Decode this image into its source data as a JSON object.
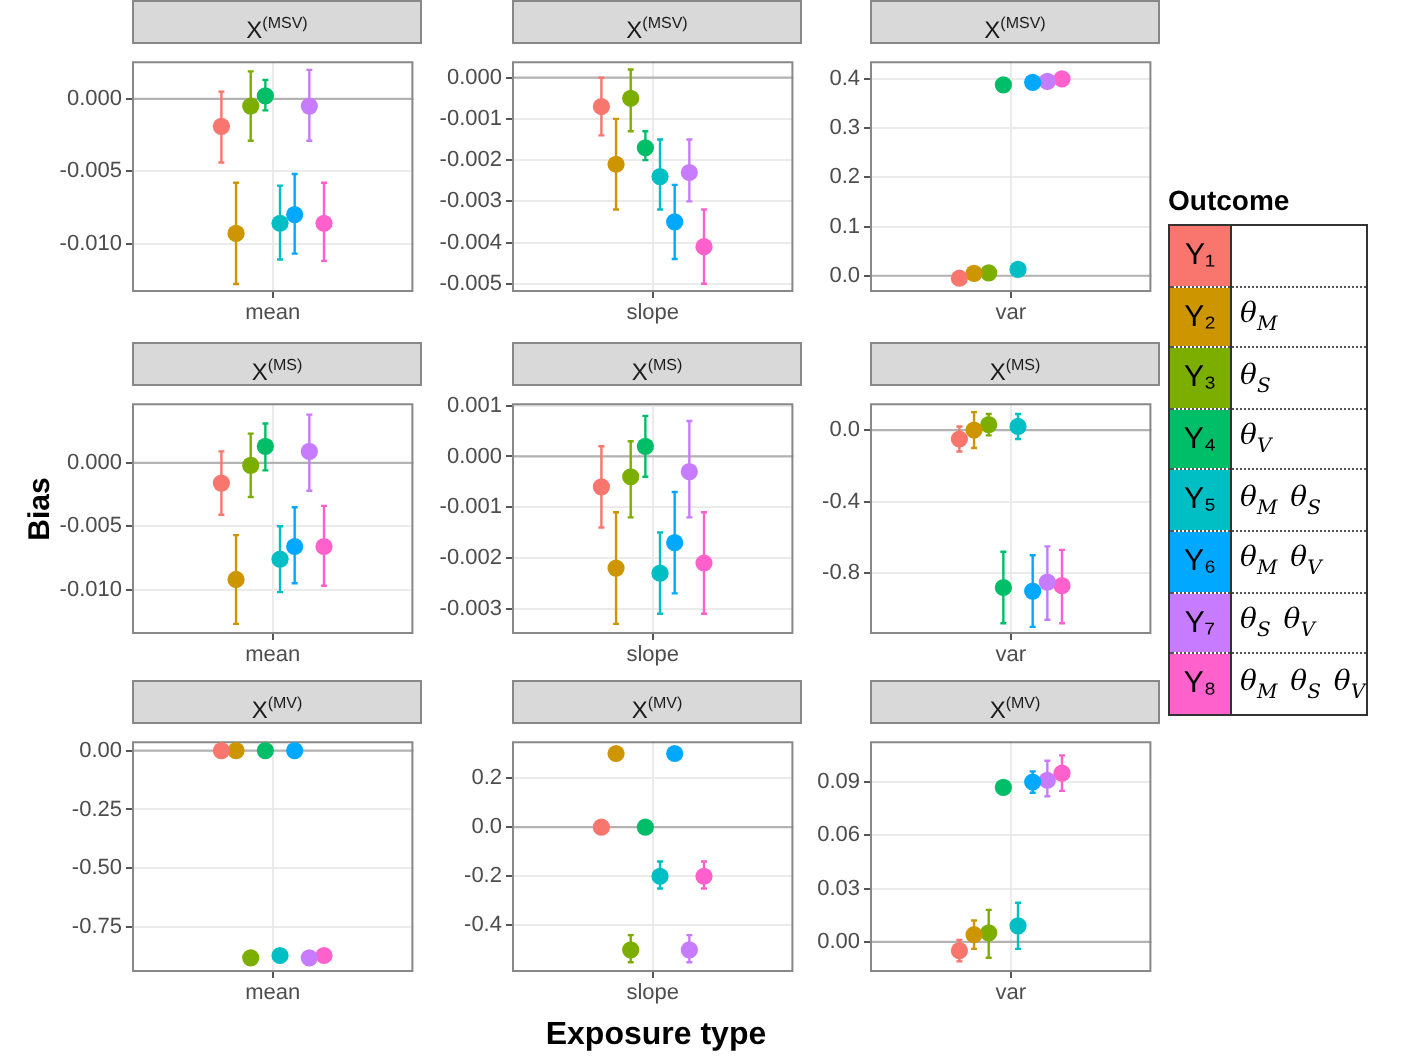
{
  "chart_data": [
    {
      "type": "scatter",
      "title": "X$^{(MSV)}$",
      "categories": [
        "mean"
      ],
      "grid": true,
      "marker": "circle",
      "ylim": [
        -0.01335,
        0.0026
      ],
      "yticks": [
        {
          "value": 0,
          "label": "0.000"
        },
        -0.005,
        {
          "value": -0.01,
          "label": "-0.010"
        }
      ],
      "ref_lines": [
        {
          "axis": "y",
          "value": 0
        }
      ],
      "series": [
        {
          "color": "#f8766d",
          "values": [
            -0.0019
          ],
          "errors": [
            [
              -0.0044,
              0.0005
            ]
          ]
        },
        {
          "color": "#cd9600",
          "values": [
            -0.0093
          ],
          "errors": [
            [
              -0.0128,
              -0.0058
            ]
          ]
        },
        {
          "color": "#7cae00",
          "values": [
            -0.0005
          ],
          "errors": [
            [
              -0.0029,
              0.0019
            ]
          ]
        },
        {
          "color": "#00be67",
          "values": [
            0.0002
          ],
          "errors": [
            [
              -0.0008,
              0.0013
            ]
          ]
        },
        {
          "color": "#00bfc4",
          "values": [
            -0.0086
          ],
          "errors": [
            [
              -0.0111,
              -0.006
            ]
          ]
        },
        {
          "color": "#00a9ff",
          "values": [
            -0.008
          ],
          "errors": [
            [
              -0.0107,
              -0.0052
            ]
          ]
        },
        {
          "color": "#c77cff",
          "values": [
            -0.0005
          ],
          "errors": [
            [
              -0.0029,
              0.002
            ]
          ]
        },
        {
          "color": "#ff61cc",
          "values": [
            -0.0086
          ],
          "errors": [
            [
              -0.0112,
              -0.0058
            ]
          ]
        }
      ]
    },
    {
      "type": "scatter",
      "title": "X$^{(MSV)}$",
      "categories": [
        "slope"
      ],
      "grid": true,
      "marker": "circle",
      "ylim": [
        -0.0052,
        0.0004
      ],
      "yticks": [
        {
          "value": 0,
          "label": "0.000"
        },
        -0.001,
        -0.002,
        -0.003,
        -0.004,
        -0.005
      ],
      "ref_lines": [
        {
          "axis": "y",
          "value": 0
        }
      ],
      "series": [
        {
          "color": "#f8766d",
          "values": [
            -0.0007
          ],
          "errors": [
            [
              -0.0014,
              0.0
            ]
          ]
        },
        {
          "color": "#cd9600",
          "values": [
            -0.0021
          ],
          "errors": [
            [
              -0.0032,
              -0.001
            ]
          ]
        },
        {
          "color": "#7cae00",
          "values": [
            -0.0005
          ],
          "errors": [
            [
              -0.0013,
              0.0002
            ]
          ]
        },
        {
          "color": "#00be67",
          "values": [
            -0.0017
          ],
          "errors": [
            [
              -0.002,
              -0.0013
            ]
          ]
        },
        {
          "color": "#00bfc4",
          "values": [
            -0.0024
          ],
          "errors": [
            [
              -0.0032,
              -0.0015
            ]
          ]
        },
        {
          "color": "#00a9ff",
          "values": [
            -0.0035
          ],
          "errors": [
            [
              -0.0044,
              -0.0026
            ]
          ]
        },
        {
          "color": "#c77cff",
          "values": [
            -0.0023
          ],
          "errors": [
            [
              -0.003,
              -0.0015
            ]
          ]
        },
        {
          "color": "#ff61cc",
          "values": [
            -0.0041
          ],
          "errors": [
            [
              -0.005,
              -0.0032
            ]
          ]
        }
      ]
    },
    {
      "type": "scatter",
      "title": "X$^{(MSV)}$",
      "categories": [
        "var"
      ],
      "grid": true,
      "marker": "circle",
      "ylim": [
        -0.033,
        0.436
      ],
      "yticks": [
        {
          "value": 0,
          "label": "0.0"
        },
        0.1,
        0.2,
        0.3,
        0.4
      ],
      "ref_lines": [
        {
          "axis": "y",
          "value": 0
        }
      ],
      "series": [
        {
          "color": "#f8766d",
          "values": [
            -0.005
          ]
        },
        {
          "color": "#cd9600",
          "values": [
            0.005
          ]
        },
        {
          "color": "#7cae00",
          "values": [
            0.006
          ]
        },
        {
          "color": "#00be67",
          "values": [
            0.388
          ]
        },
        {
          "color": "#00bfc4",
          "values": [
            0.013
          ]
        },
        {
          "color": "#00a9ff",
          "values": [
            0.393
          ]
        },
        {
          "color": "#c77cff",
          "values": [
            0.395
          ]
        },
        {
          "color": "#ff61cc",
          "values": [
            0.4
          ]
        }
      ]
    },
    {
      "type": "scatter",
      "title": "X$^{(MS)}$",
      "categories": [
        "mean"
      ],
      "ylabel": "Bias",
      "grid": true,
      "marker": "circle",
      "ylim": [
        -0.0135,
        0.0047
      ],
      "yticks": [
        {
          "value": 0,
          "label": "0.000"
        },
        -0.005,
        {
          "value": -0.01,
          "label": "-0.010"
        }
      ],
      "ref_lines": [
        {
          "axis": "y",
          "value": 0
        }
      ],
      "series": [
        {
          "color": "#f8766d",
          "values": [
            -0.0016
          ],
          "errors": [
            [
              -0.0041,
              0.0009
            ]
          ]
        },
        {
          "color": "#cd9600",
          "values": [
            -0.0092
          ],
          "errors": [
            [
              -0.0127,
              -0.0057
            ]
          ]
        },
        {
          "color": "#7cae00",
          "values": [
            -0.0002
          ],
          "errors": [
            [
              -0.0027,
              0.0023
            ]
          ]
        },
        {
          "color": "#00be67",
          "values": [
            0.0013
          ],
          "errors": [
            [
              -0.0006,
              0.0031
            ]
          ]
        },
        {
          "color": "#00bfc4",
          "values": [
            -0.0076
          ],
          "errors": [
            [
              -0.0102,
              -0.005
            ]
          ]
        },
        {
          "color": "#00a9ff",
          "values": [
            -0.0066
          ],
          "errors": [
            [
              -0.0095,
              -0.0035
            ]
          ]
        },
        {
          "color": "#c77cff",
          "values": [
            0.0009
          ],
          "errors": [
            [
              -0.0022,
              0.0038
            ]
          ]
        },
        {
          "color": "#ff61cc",
          "values": [
            -0.0066
          ],
          "errors": [
            [
              -0.0097,
              -0.0034
            ]
          ]
        }
      ]
    },
    {
      "type": "scatter",
      "title": "X$^{(MS)}$",
      "categories": [
        "slope"
      ],
      "grid": true,
      "marker": "circle",
      "ylim": [
        -0.0035,
        0.00105
      ],
      "yticks": [
        0.001,
        {
          "value": 0,
          "label": "0.000"
        },
        -0.001,
        -0.002,
        -0.003
      ],
      "ref_lines": [
        {
          "axis": "y",
          "value": 0
        }
      ],
      "series": [
        {
          "color": "#f8766d",
          "values": [
            -0.0006
          ],
          "errors": [
            [
              -0.0014,
              0.0002
            ]
          ]
        },
        {
          "color": "#cd9600",
          "values": [
            -0.0022
          ],
          "errors": [
            [
              -0.0033,
              -0.0011
            ]
          ]
        },
        {
          "color": "#7cae00",
          "values": [
            -0.0004
          ],
          "errors": [
            [
              -0.0012,
              0.0003
            ]
          ]
        },
        {
          "color": "#00be67",
          "values": [
            0.0002
          ],
          "errors": [
            [
              -0.0004,
              0.0008
            ]
          ]
        },
        {
          "color": "#00bfc4",
          "values": [
            -0.0023
          ],
          "errors": [
            [
              -0.0031,
              -0.0015
            ]
          ]
        },
        {
          "color": "#00a9ff",
          "values": [
            -0.0017
          ],
          "errors": [
            [
              -0.0027,
              -0.0007
            ]
          ]
        },
        {
          "color": "#c77cff",
          "values": [
            -0.0003
          ],
          "errors": [
            [
              -0.0012,
              0.0007
            ]
          ]
        },
        {
          "color": "#ff61cc",
          "values": [
            -0.0021
          ],
          "errors": [
            [
              -0.0031,
              -0.0011
            ]
          ]
        }
      ]
    },
    {
      "type": "scatter",
      "title": "X$^{(MS)}$",
      "categories": [
        "var"
      ],
      "grid": true,
      "marker": "circle",
      "legend": "right",
      "legend_title": "Outcome",
      "annotations": [
        "θ$_{M}$",
        "θ$_{S}$",
        "θ$_{V}$",
        "θ$_{M}$ θ$_{S}$",
        "θ$_{M}$ θ$_{V}$",
        "θ$_{S}$ θ$_{V}$",
        "θ$_{M}$ θ$_{S}$ θ$_{V}$"
      ],
      "ylim": [
        -1.14,
        0.15
      ],
      "yticks": [
        {
          "value": 0,
          "label": "0.0"
        },
        -0.4,
        -0.8
      ],
      "ref_lines": [
        {
          "axis": "y",
          "value": 0
        }
      ],
      "series": [
        {
          "name": "Y₁",
          "color": "#f8766d",
          "values": [
            -0.05
          ],
          "errors": [
            [
              -0.12,
              0.02
            ]
          ]
        },
        {
          "name": "Y₂",
          "color": "#cd9600",
          "values": [
            0.0
          ],
          "errors": [
            [
              -0.1,
              0.1
            ]
          ]
        },
        {
          "name": "Y₃",
          "color": "#7cae00",
          "values": [
            0.03
          ],
          "errors": [
            [
              -0.03,
              0.09
            ]
          ]
        },
        {
          "name": "Y₄",
          "color": "#00be67",
          "values": [
            -0.88
          ],
          "errors": [
            [
              -1.08,
              -0.68
            ]
          ]
        },
        {
          "name": "Y₅",
          "color": "#00bfc4",
          "values": [
            0.02
          ],
          "errors": [
            [
              -0.05,
              0.09
            ]
          ]
        },
        {
          "name": "Y₆",
          "color": "#00a9ff",
          "values": [
            -0.9
          ],
          "errors": [
            [
              -1.1,
              -0.7
            ]
          ]
        },
        {
          "name": "Y₇",
          "color": "#c77cff",
          "values": [
            -0.85
          ],
          "errors": [
            [
              -1.06,
              -0.65
            ]
          ]
        },
        {
          "name": "Y₈",
          "color": "#ff61cc",
          "values": [
            -0.87
          ],
          "errors": [
            [
              -1.08,
              -0.67
            ]
          ]
        }
      ]
    },
    {
      "type": "scatter",
      "title": "X$^{(MV)}$",
      "categories": [
        "mean"
      ],
      "grid": true,
      "marker": "circle",
      "ylim": [
        -0.94,
        0.04
      ],
      "yticks": [
        {
          "value": 0,
          "label": "0.00"
        },
        -0.25,
        {
          "value": -0.5,
          "label": "-0.50"
        },
        -0.75
      ],
      "ref_lines": [
        {
          "axis": "y",
          "value": 0
        }
      ],
      "series": [
        {
          "color": "#f8766d",
          "values": [
            0.0
          ]
        },
        {
          "color": "#cd9600",
          "values": [
            0.0
          ]
        },
        {
          "color": "#7cae00",
          "values": [
            -0.88
          ]
        },
        {
          "color": "#00be67",
          "values": [
            0.0
          ]
        },
        {
          "color": "#00bfc4",
          "values": [
            -0.87
          ]
        },
        {
          "color": "#00a9ff",
          "values": [
            0.0
          ]
        },
        {
          "color": "#c77cff",
          "values": [
            -0.88
          ]
        },
        {
          "color": "#ff61cc",
          "values": [
            -0.87
          ]
        }
      ]
    },
    {
      "type": "scatter",
      "title": "X$^{(MV)}$",
      "categories": [
        "slope"
      ],
      "xlabel": "Exposure type",
      "grid": true,
      "marker": "circle",
      "ylim": [
        -0.59,
        0.35
      ],
      "yticks": [
        0.2,
        {
          "value": 0,
          "label": "0.0"
        },
        -0.2,
        -0.4
      ],
      "ref_lines": [
        {
          "axis": "y",
          "value": 0
        }
      ],
      "series": [
        {
          "color": "#f8766d",
          "values": [
            0.0
          ]
        },
        {
          "color": "#cd9600",
          "values": [
            0.3
          ]
        },
        {
          "color": "#7cae00",
          "values": [
            -0.5
          ],
          "errors": [
            [
              -0.55,
              -0.44
            ]
          ]
        },
        {
          "color": "#00be67",
          "values": [
            0.0
          ]
        },
        {
          "color": "#00bfc4",
          "values": [
            -0.2
          ],
          "errors": [
            [
              -0.25,
              -0.14
            ]
          ]
        },
        {
          "color": "#00a9ff",
          "values": [
            0.3
          ]
        },
        {
          "color": "#c77cff",
          "values": [
            -0.5
          ],
          "errors": [
            [
              -0.55,
              -0.44
            ]
          ]
        },
        {
          "color": "#ff61cc",
          "values": [
            -0.2
          ],
          "errors": [
            [
              -0.25,
              -0.14
            ]
          ]
        }
      ]
    },
    {
      "type": "scatter",
      "title": "X$^{(MV)}$",
      "categories": [
        "var"
      ],
      "grid": true,
      "marker": "circle",
      "ylim": [
        -0.017,
        0.113
      ],
      "yticks": [
        {
          "value": 0,
          "label": "0.00"
        },
        0.03,
        0.06,
        0.09
      ],
      "ref_lines": [
        {
          "axis": "y",
          "value": 0
        }
      ],
      "series": [
        {
          "color": "#f8766d",
          "values": [
            -0.005
          ],
          "errors": [
            [
              -0.011,
              0.001
            ]
          ]
        },
        {
          "color": "#cd9600",
          "values": [
            0.004
          ],
          "errors": [
            [
              -0.004,
              0.012
            ]
          ]
        },
        {
          "color": "#7cae00",
          "values": [
            0.005
          ],
          "errors": [
            [
              -0.009,
              0.018
            ]
          ]
        },
        {
          "color": "#00be67",
          "values": [
            0.087
          ]
        },
        {
          "color": "#00bfc4",
          "values": [
            0.009
          ],
          "errors": [
            [
              -0.004,
              0.022
            ]
          ]
        },
        {
          "color": "#00a9ff",
          "values": [
            0.09
          ],
          "errors": [
            [
              0.084,
              0.096
            ]
          ]
        },
        {
          "color": "#c77cff",
          "values": [
            0.091
          ],
          "errors": [
            [
              0.082,
              0.102
            ]
          ]
        },
        {
          "color": "#ff61cc",
          "values": [
            0.095
          ],
          "errors": [
            [
              0.085,
              0.105
            ]
          ]
        }
      ]
    }
  ]
}
